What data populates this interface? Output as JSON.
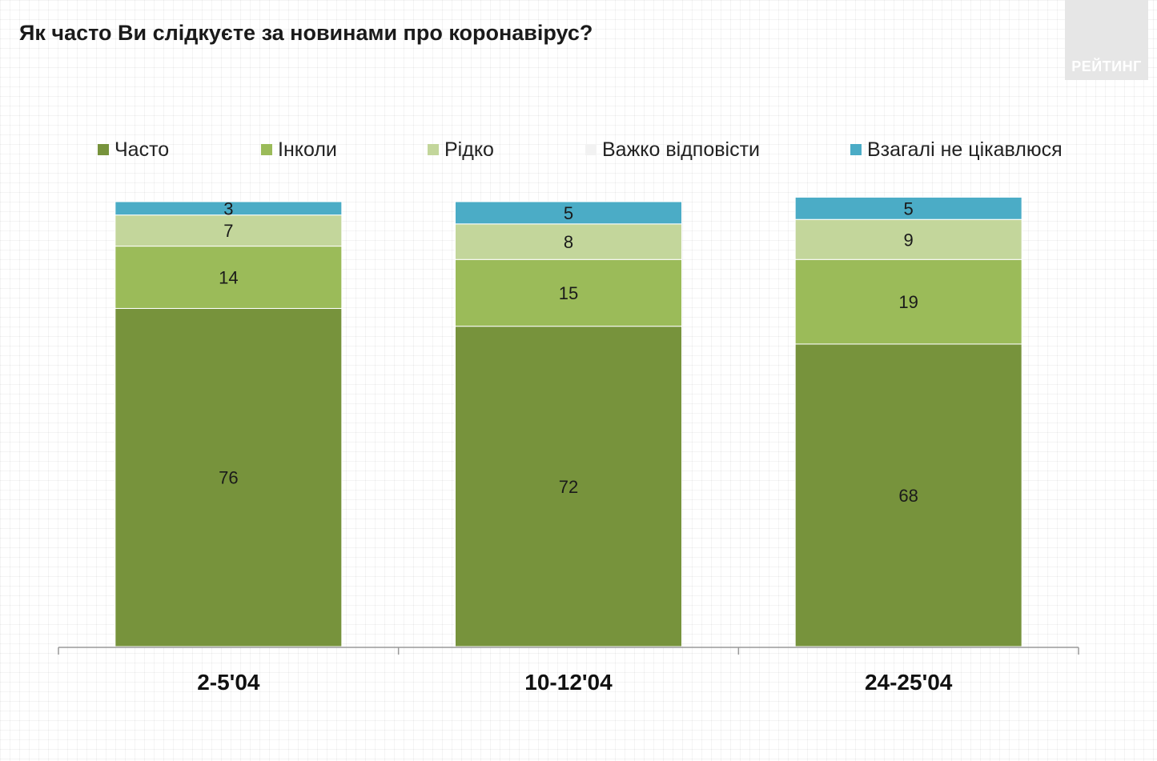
{
  "logo": {
    "text": "РЕЙТИНГ"
  },
  "chart_data": {
    "type": "bar",
    "stacked": true,
    "title": "Як часто Ви слідкуєте за новинами про коронавірус?",
    "categories": [
      "2-5'04",
      "10-12'04",
      "24-25'04"
    ],
    "series": [
      {
        "name": "Часто",
        "color": "#77933c",
        "values": [
          76,
          72,
          68
        ]
      },
      {
        "name": "Інколи",
        "color": "#9bbb59",
        "values": [
          14,
          15,
          19
        ]
      },
      {
        "name": "Рідко",
        "color": "#c3d69b",
        "values": [
          7,
          8,
          9
        ]
      },
      {
        "name": "Важко відповісти",
        "color": "#f2f2f2",
        "values": [
          0,
          0,
          0
        ]
      },
      {
        "name": "Взагалі не цікавлюся",
        "color": "#4bacc6",
        "values": [
          3,
          5,
          5
        ]
      }
    ],
    "ylim": [
      0,
      100
    ],
    "grid": false,
    "legend_position": "top"
  }
}
